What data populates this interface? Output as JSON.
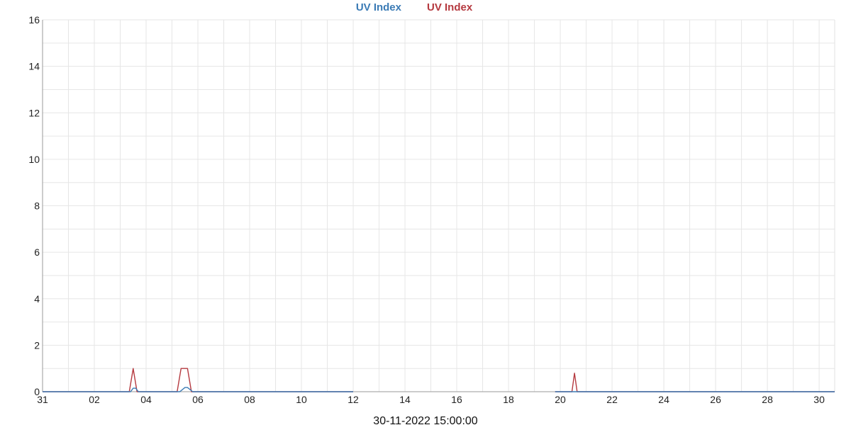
{
  "chart_data": {
    "type": "line",
    "title": "",
    "xlabel": "30-11-2022 15:00:00",
    "ylabel": "",
    "grid": true,
    "legend_position": "top-center",
    "xlim": [
      0,
      30.6
    ],
    "ylim": [
      0,
      16
    ],
    "y_ticks": [
      0,
      2,
      4,
      6,
      8,
      10,
      12,
      14,
      16
    ],
    "x_ticks": [
      {
        "value": 0,
        "label": "31"
      },
      {
        "value": 2,
        "label": "02"
      },
      {
        "value": 4,
        "label": "04"
      },
      {
        "value": 6,
        "label": "06"
      },
      {
        "value": 8,
        "label": "08"
      },
      {
        "value": 10,
        "label": "10"
      },
      {
        "value": 12,
        "label": "12"
      },
      {
        "value": 14,
        "label": "14"
      },
      {
        "value": 16,
        "label": "16"
      },
      {
        "value": 18,
        "label": "18"
      },
      {
        "value": 20,
        "label": "20"
      },
      {
        "value": 22,
        "label": "22"
      },
      {
        "value": 24,
        "label": "24"
      },
      {
        "value": 26,
        "label": "26"
      },
      {
        "value": 28,
        "label": "28"
      },
      {
        "value": 30,
        "label": "30"
      }
    ],
    "series": [
      {
        "name": "UV Index",
        "color": "#3b7bb5",
        "segments": [
          [
            [
              0,
              0
            ],
            [
              3.4,
              0
            ],
            [
              3.5,
              0.15
            ],
            [
              3.6,
              0.15
            ],
            [
              3.7,
              0
            ],
            [
              5.3,
              0
            ],
            [
              5.5,
              0.18
            ],
            [
              5.6,
              0.18
            ],
            [
              5.8,
              0
            ],
            [
              12,
              0
            ]
          ],
          [
            [
              19.8,
              0
            ],
            [
              30.6,
              0
            ]
          ]
        ]
      },
      {
        "name": "UV Index",
        "color": "#b5393f",
        "segments": [
          [
            [
              0,
              0
            ],
            [
              3.35,
              0
            ],
            [
              3.5,
              1.0
            ],
            [
              3.65,
              0
            ],
            [
              5.2,
              0
            ],
            [
              5.35,
              1.0
            ],
            [
              5.6,
              1.0
            ],
            [
              5.75,
              0
            ],
            [
              12,
              0
            ]
          ],
          [
            [
              19.8,
              0
            ],
            [
              20.45,
              0
            ],
            [
              20.55,
              0.8
            ],
            [
              20.65,
              0
            ],
            [
              30.6,
              0
            ]
          ]
        ]
      }
    ]
  }
}
